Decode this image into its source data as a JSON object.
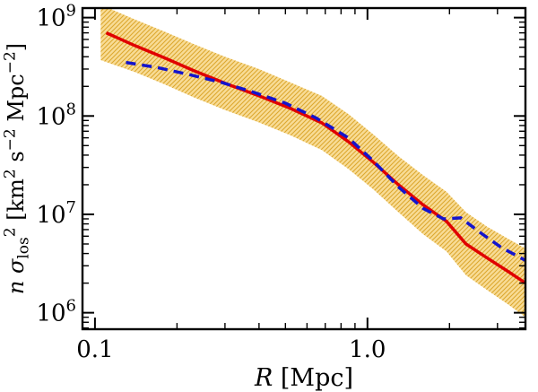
{
  "chart_data": {
    "type": "line",
    "title": "",
    "x_scale": "log",
    "y_scale": "log",
    "xlim": [
      0.09,
      3.8
    ],
    "ylim": [
      680000.0,
      1250000000.0
    ],
    "grid": false,
    "legend": "none",
    "xlabel_segments": [
      {
        "text": "R",
        "italic": true
      },
      {
        "text": " [Mpc]"
      }
    ],
    "ylabel_segments": [
      {
        "text": "n",
        "italic": true
      },
      {
        "text": " σ",
        "italic": true
      },
      {
        "text": "los",
        "script": "sub"
      },
      {
        "text": "2",
        "script": "sup"
      },
      {
        "text": " [km"
      },
      {
        "text": "2",
        "script": "sup"
      },
      {
        "text": " s"
      },
      {
        "text": "−2",
        "script": "sup"
      },
      {
        "text": " Mpc"
      },
      {
        "text": "−2",
        "script": "sup"
      },
      {
        "text": "]"
      }
    ],
    "x_major_ticks": [
      {
        "value": 0.1,
        "label": "0.1"
      },
      {
        "value": 1.0,
        "label": "1.0"
      }
    ],
    "y_major_ticks": [
      {
        "value": 1000000.0,
        "label_base": "10",
        "label_exp": "6"
      },
      {
        "value": 10000000.0,
        "label_base": "10",
        "label_exp": "7"
      },
      {
        "value": 100000000.0,
        "label_base": "10",
        "label_exp": "8"
      },
      {
        "value": 1000000000.0,
        "label_base": "10",
        "label_exp": "9"
      }
    ],
    "colors": {
      "frame": "#000000",
      "band_fill": "#f8dc96",
      "band_hatch": "#dca72e",
      "red_line": "#e00000",
      "blue_line": "#1414cc"
    },
    "series": [
      {
        "name": "uncertainty-band",
        "type": "band",
        "fill": "#f8dc96",
        "hatch": "#dca72e",
        "x": [
          0.105,
          0.14,
          0.18,
          0.23,
          0.3,
          0.4,
          0.52,
          0.68,
          0.85,
          1.05,
          1.3,
          1.6,
          1.95,
          2.3,
          2.75,
          3.3,
          3.8
        ],
        "upper": [
          1350000000.0,
          960000000.0,
          720000000.0,
          540000000.0,
          400000000.0,
          300000000.0,
          220000000.0,
          160000000.0,
          105000000.0,
          65000000.0,
          39000000.0,
          25000000.0,
          17000000.0,
          10500000.0,
          7500000.0,
          5600000.0,
          4500000.0
        ],
        "lower": [
          370000000.0,
          280000000.0,
          210000000.0,
          155000000.0,
          115000000.0,
          86000000.0,
          64000000.0,
          45000000.0,
          29000000.0,
          18000000.0,
          10500000.0,
          6300000.0,
          4200000.0,
          2400000.0,
          1700000.0,
          1200000.0,
          900000.0
        ]
      },
      {
        "name": "red-solid",
        "color": "#e00000",
        "width": 3.5,
        "dash": null,
        "x": [
          0.11,
          0.14,
          0.18,
          0.23,
          0.3,
          0.4,
          0.52,
          0.68,
          0.85,
          1.05,
          1.3,
          1.6,
          1.95,
          2.3,
          2.75,
          3.3,
          3.8
        ],
        "y": [
          700000000.0,
          520000000.0,
          390000000.0,
          290000000.0,
          215000000.0,
          160000000.0,
          120000000.0,
          85000000.0,
          55000000.0,
          34000000.0,
          20000000.0,
          12500000.0,
          8500000.0,
          5000000.0,
          3600000.0,
          2600000.0,
          2000000.0
        ]
      },
      {
        "name": "blue-dashed",
        "color": "#1414cc",
        "width": 3.5,
        "dash": "11,7",
        "x": [
          0.13,
          0.17,
          0.22,
          0.29,
          0.38,
          0.5,
          0.65,
          0.85,
          1.05,
          1.3,
          1.6,
          1.9,
          2.2,
          2.6,
          3.1,
          3.8
        ],
        "y": [
          350000000.0,
          310000000.0,
          265000000.0,
          220000000.0,
          175000000.0,
          135000000.0,
          95000000.0,
          60000000.0,
          35000000.0,
          19000000.0,
          11500000.0,
          9000000.0,
          9200000.0,
          6500000.0,
          4600000.0,
          3400000.0
        ]
      }
    ]
  }
}
